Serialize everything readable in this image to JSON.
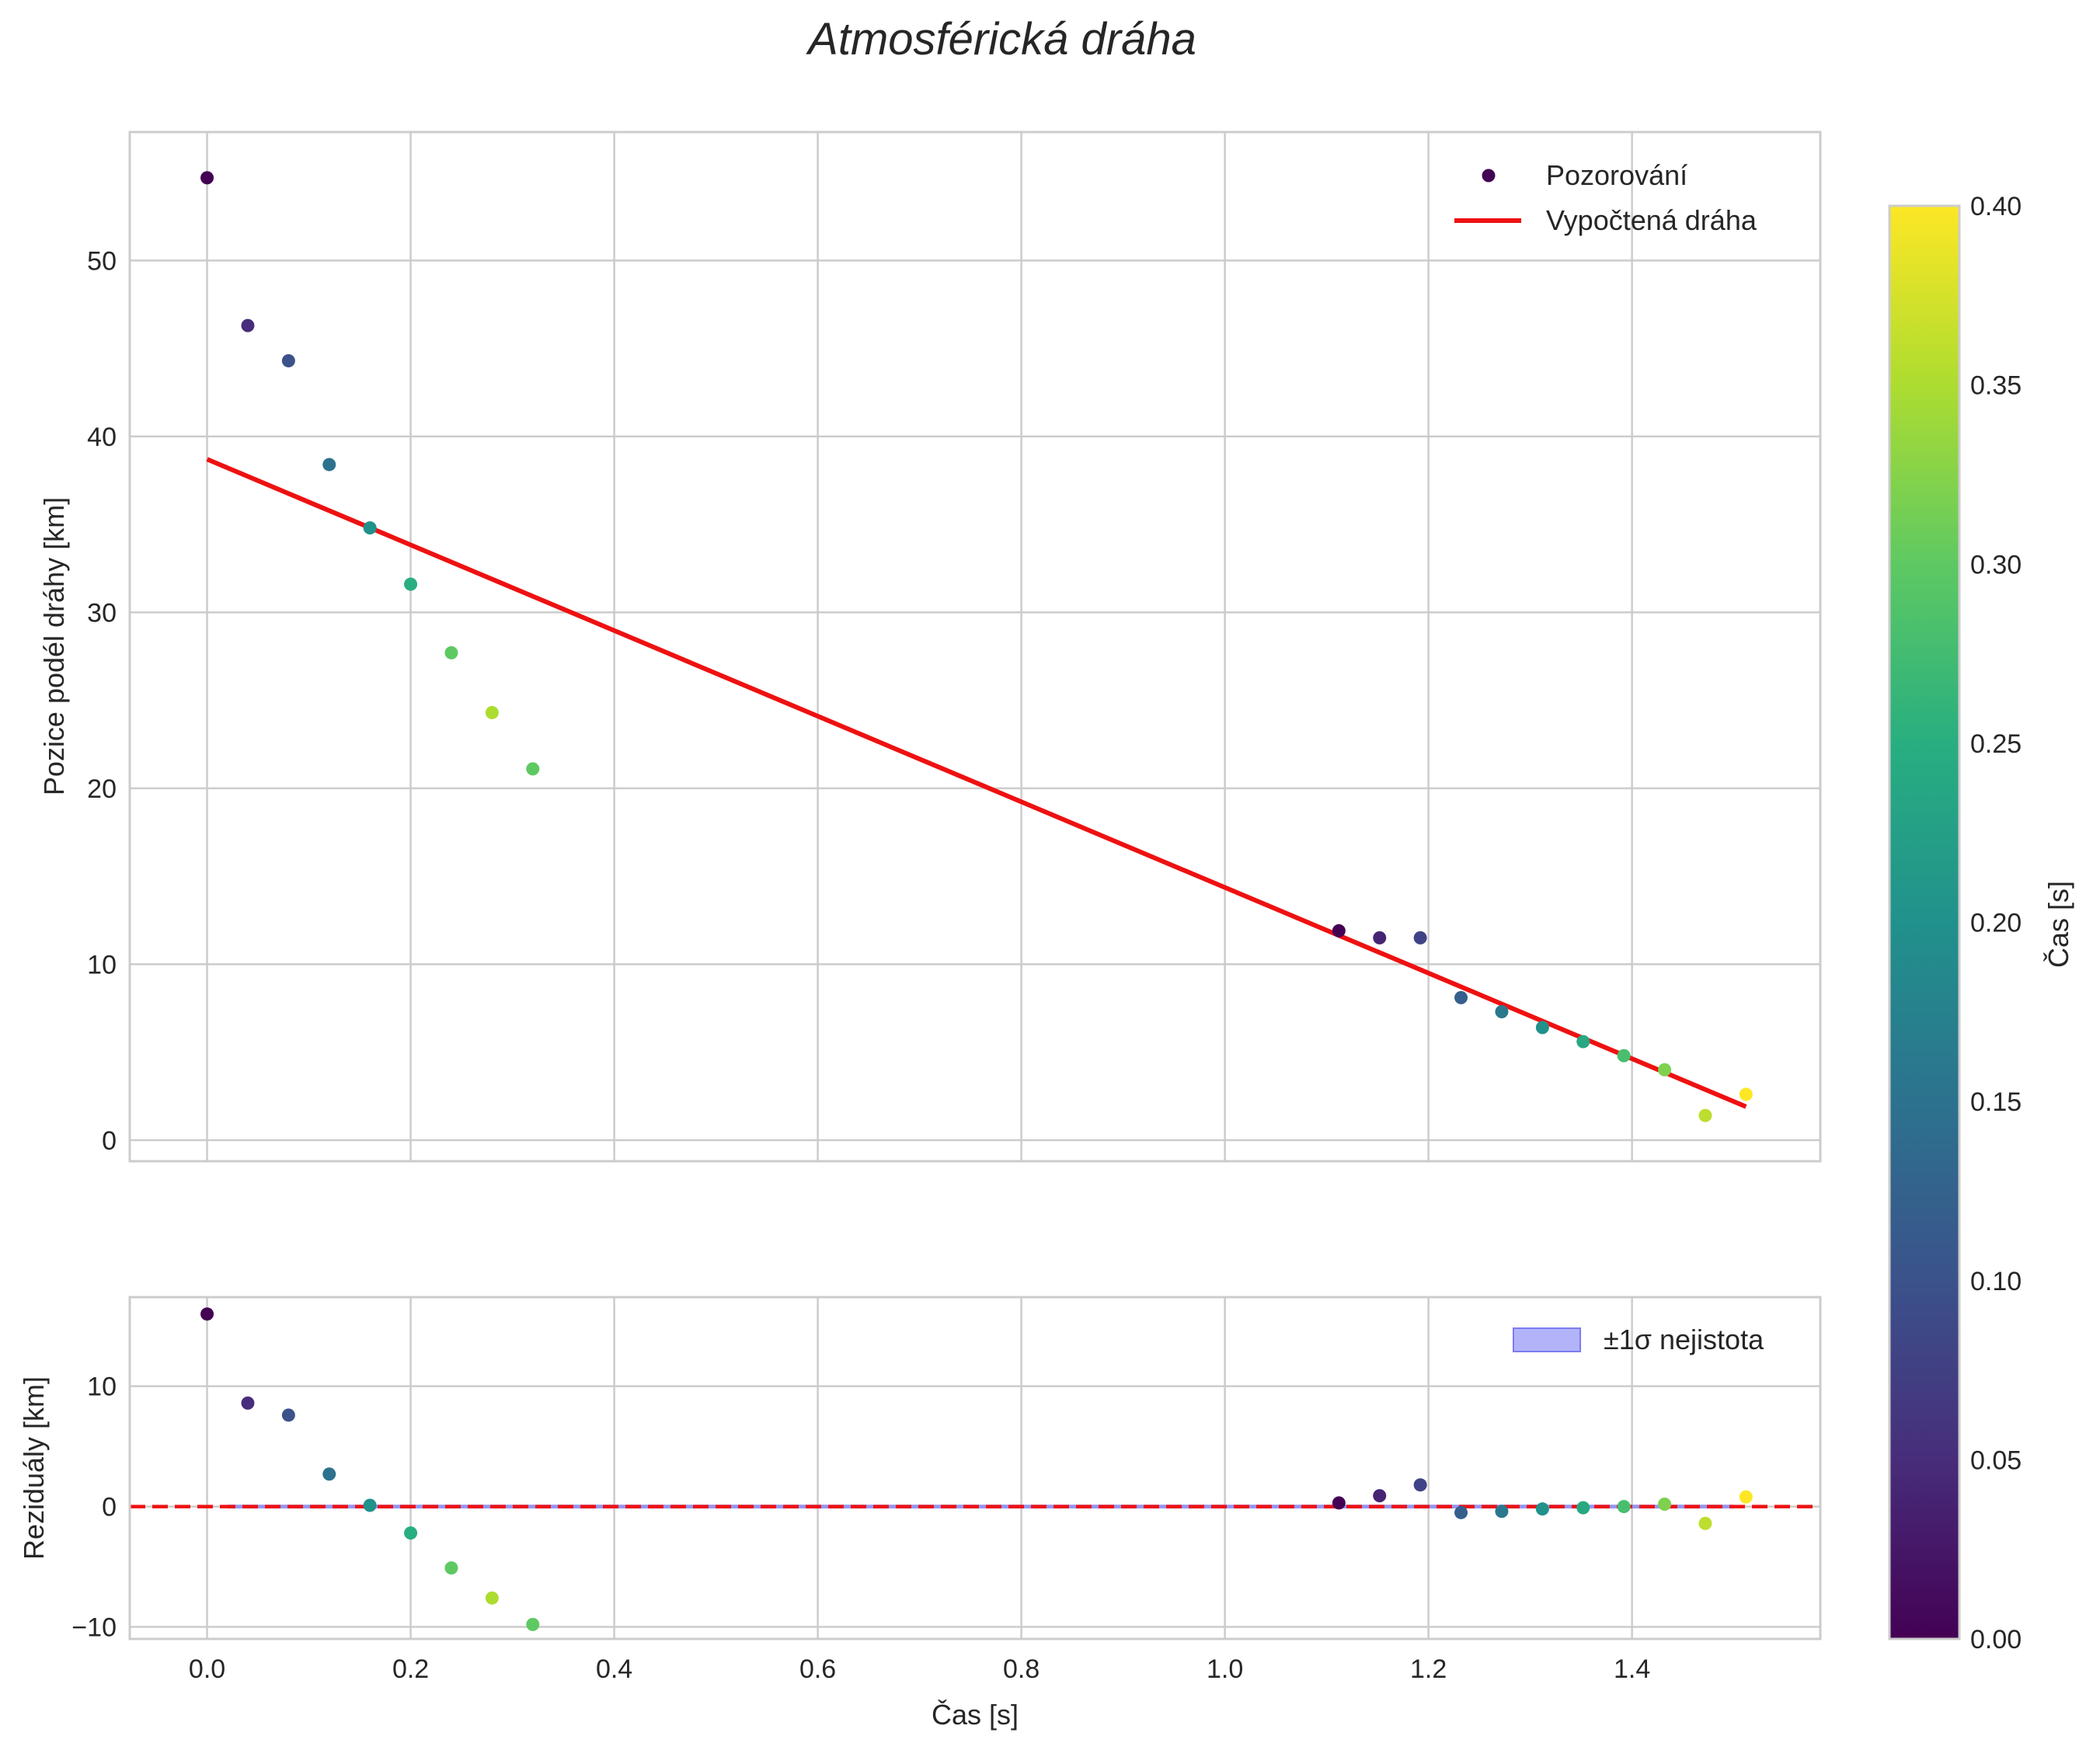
{
  "chart_data": {
    "type": "scatter",
    "title": "Atmosférická dráha",
    "xlabel": "Čas [s]",
    "x_ticks": [
      "0.0",
      "0.2",
      "0.4",
      "0.6",
      "0.8",
      "1.0",
      "1.2",
      "1.4"
    ],
    "xlim": [
      -0.076,
      1.585
    ],
    "top_panel": {
      "ylabel": "Pozice podél dráhy [km]",
      "ylim": [
        -1.2,
        57.3
      ],
      "y_ticks": [
        "0",
        "10",
        "20",
        "30",
        "40",
        "50"
      ],
      "legend": {
        "position": "top-right",
        "scatter_label": "Pozorování",
        "line_label": "Vypočtená dráha"
      },
      "fit_line": {
        "name": "Vypočtená dráha",
        "color": "#ee1111",
        "x": [
          0.0,
          1.512
        ],
        "y": [
          38.7,
          1.9
        ]
      },
      "observations": {
        "name": "Pozorování",
        "station_1": {
          "x": [
            0.0,
            0.04,
            0.08,
            0.12,
            0.16,
            0.2,
            0.24,
            0.28,
            0.32
          ],
          "y": [
            54.7,
            46.3,
            44.3,
            38.4,
            34.8,
            31.6,
            27.7,
            24.3,
            21.1
          ],
          "t": [
            0.0,
            0.05,
            0.1,
            0.15,
            0.2,
            0.25,
            0.3,
            0.35,
            0.3
          ]
        },
        "station_2": {
          "x": [
            1.112,
            1.152,
            1.192,
            1.232,
            1.272,
            1.312,
            1.352,
            1.392,
            1.432,
            1.472,
            1.512
          ],
          "y": [
            11.9,
            11.5,
            11.5,
            8.1,
            7.3,
            6.4,
            5.6,
            4.8,
            4.0,
            1.4,
            2.6
          ],
          "t": [
            0.0,
            0.04,
            0.08,
            0.12,
            0.16,
            0.2,
            0.24,
            0.28,
            0.32,
            0.36,
            0.4
          ]
        }
      }
    },
    "bottom_panel": {
      "ylabel": "Reziduály [km]",
      "ylim": [
        -11.0,
        17.4
      ],
      "y_ticks": [
        "−10",
        "0",
        "10"
      ],
      "legend": {
        "position": "top-right",
        "band_label": "±1σ nejistota"
      },
      "zero_line_color": "#ee1111",
      "residuals": {
        "station_1": {
          "x": [
            0.0,
            0.04,
            0.08,
            0.12,
            0.16,
            0.2,
            0.24,
            0.28,
            0.32
          ],
          "y": [
            16.0,
            8.6,
            7.6,
            2.7,
            0.1,
            -2.2,
            -5.1,
            -7.6,
            -9.8
          ],
          "t": [
            0.0,
            0.05,
            0.1,
            0.15,
            0.2,
            0.25,
            0.3,
            0.35,
            0.3
          ]
        },
        "station_2": {
          "x": [
            1.112,
            1.152,
            1.192,
            1.232,
            1.272,
            1.312,
            1.352,
            1.392,
            1.432,
            1.472,
            1.512
          ],
          "y": [
            0.3,
            0.9,
            1.8,
            -0.5,
            -0.4,
            -0.2,
            -0.1,
            0.0,
            0.2,
            -1.4,
            0.8
          ],
          "t": [
            0.0,
            0.04,
            0.08,
            0.12,
            0.16,
            0.2,
            0.24,
            0.28,
            0.32,
            0.36,
            0.4
          ]
        }
      }
    },
    "colorbar": {
      "label": "Čas [s]",
      "colormap": "viridis",
      "range": [
        0.0,
        0.4
      ],
      "ticks": [
        "0.00",
        "0.05",
        "0.10",
        "0.15",
        "0.20",
        "0.25",
        "0.30",
        "0.35",
        "0.40"
      ]
    }
  }
}
